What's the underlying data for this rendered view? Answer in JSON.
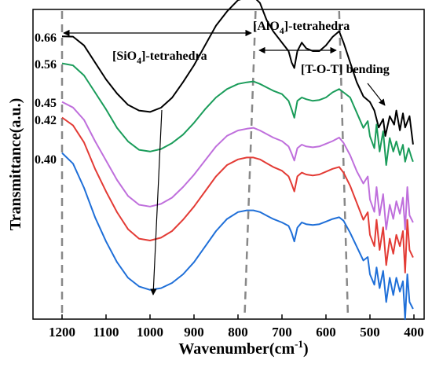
{
  "chart_data": {
    "type": "line",
    "title": "",
    "xlabel": "Wavenumber(cm",
    "xlabel_sup": "-1",
    "xlabel_tail": ")",
    "ylabel": "Transmittance(a.u.)",
    "xlim": [
      1260,
      390
    ],
    "x_reversed": true,
    "y_ticks_shown": false,
    "grid": false,
    "x_ticks": [
      1200,
      1100,
      1000,
      900,
      800,
      700,
      600,
      500,
      400
    ],
    "x_tick_labels": [
      "1200",
      "1100",
      "1000",
      "900",
      "800",
      "700",
      "600",
      "500",
      "400"
    ],
    "annotations": [
      {
        "id": "si",
        "pre": "[SiO",
        "sub": "4",
        "post": "]-tetrahedra"
      },
      {
        "id": "al",
        "pre": "[AlO",
        "sub": "4",
        "post": "]-tetrahedra"
      },
      {
        "id": "tot",
        "pre": "[T-O-T] bending",
        "sub": "",
        "post": ""
      }
    ],
    "reference_lines": [
      {
        "x_top": 1200,
        "x_bottom": 1200
      },
      {
        "x_top": 760,
        "x_bottom": 785
      },
      {
        "x_top": 570,
        "x_bottom": 550
      }
    ],
    "series": [
      {
        "name": "0.66",
        "color": "#000000",
        "points": [
          [
            1200,
            -0.2
          ],
          [
            1175,
            -0.1
          ],
          [
            1150,
            3
          ],
          [
            1125,
            9
          ],
          [
            1100,
            15
          ],
          [
            1075,
            20
          ],
          [
            1050,
            24
          ],
          [
            1025,
            26
          ],
          [
            1000,
            26.5
          ],
          [
            975,
            25
          ],
          [
            950,
            21.5
          ],
          [
            925,
            16
          ],
          [
            900,
            10
          ],
          [
            875,
            3
          ],
          [
            850,
            -4
          ],
          [
            825,
            -9
          ],
          [
            800,
            -13
          ],
          [
            780,
            -14
          ],
          [
            765,
            -14.3
          ],
          [
            750,
            -12
          ],
          [
            735,
            -6
          ],
          [
            720,
            -2
          ],
          [
            700,
            2
          ],
          [
            685,
            5
          ],
          [
            678,
            9
          ],
          [
            672,
            11
          ],
          [
            665,
            5
          ],
          [
            655,
            2
          ],
          [
            645,
            4
          ],
          [
            630,
            5
          ],
          [
            615,
            5
          ],
          [
            600,
            3
          ],
          [
            585,
            0
          ],
          [
            570,
            -2
          ],
          [
            560,
            2
          ],
          [
            545,
            9
          ],
          [
            530,
            16
          ],
          [
            515,
            21
          ],
          [
            500,
            23
          ],
          [
            490,
            26
          ],
          [
            480,
            32
          ],
          [
            470,
            29
          ],
          [
            465,
            35
          ],
          [
            455,
            28
          ],
          [
            445,
            31
          ],
          [
            440,
            26
          ],
          [
            432,
            33
          ],
          [
            425,
            27
          ],
          [
            420,
            32
          ],
          [
            410,
            28
          ],
          [
            402,
            38
          ]
        ]
      },
      {
        "name": "0.56",
        "color": "#1a9c5a",
        "points": [
          [
            1200,
            -0.2
          ],
          [
            1175,
            1
          ],
          [
            1150,
            7
          ],
          [
            1125,
            17
          ],
          [
            1100,
            27
          ],
          [
            1075,
            38
          ],
          [
            1050,
            46
          ],
          [
            1025,
            51
          ],
          [
            1000,
            52
          ],
          [
            975,
            50.5
          ],
          [
            950,
            47
          ],
          [
            925,
            42
          ],
          [
            900,
            35
          ],
          [
            875,
            27
          ],
          [
            850,
            20
          ],
          [
            825,
            15
          ],
          [
            800,
            12
          ],
          [
            780,
            11
          ],
          [
            765,
            10.5
          ],
          [
            750,
            12
          ],
          [
            735,
            14
          ],
          [
            720,
            16
          ],
          [
            700,
            18
          ],
          [
            685,
            22
          ],
          [
            678,
            27
          ],
          [
            672,
            32
          ],
          [
            665,
            22
          ],
          [
            655,
            20
          ],
          [
            645,
            21
          ],
          [
            630,
            22
          ],
          [
            615,
            21.5
          ],
          [
            600,
            20
          ],
          [
            585,
            17
          ],
          [
            570,
            15
          ],
          [
            560,
            17
          ],
          [
            545,
            20
          ],
          [
            530,
            29
          ],
          [
            515,
            38
          ],
          [
            505,
            34
          ],
          [
            500,
            43
          ],
          [
            490,
            50
          ],
          [
            485,
            36
          ],
          [
            478,
            52
          ],
          [
            470,
            40
          ],
          [
            463,
            60
          ],
          [
            455,
            44
          ],
          [
            447,
            52
          ],
          [
            440,
            46
          ],
          [
            432,
            54
          ],
          [
            425,
            48
          ],
          [
            420,
            58
          ],
          [
            412,
            50
          ],
          [
            405,
            56
          ],
          [
            402,
            58
          ]
        ]
      },
      {
        "name": "0.45",
        "color": "#bf6fdc",
        "points": [
          [
            1200,
            -0.2
          ],
          [
            1175,
            3
          ],
          [
            1150,
            10
          ],
          [
            1125,
            22
          ],
          [
            1100,
            33
          ],
          [
            1075,
            44
          ],
          [
            1050,
            53
          ],
          [
            1025,
            58
          ],
          [
            1000,
            59
          ],
          [
            975,
            57.5
          ],
          [
            950,
            54
          ],
          [
            925,
            48
          ],
          [
            900,
            41
          ],
          [
            875,
            33
          ],
          [
            850,
            25
          ],
          [
            825,
            19
          ],
          [
            800,
            16
          ],
          [
            780,
            15
          ],
          [
            765,
            14.5
          ],
          [
            750,
            16
          ],
          [
            735,
            18
          ],
          [
            720,
            20
          ],
          [
            700,
            22
          ],
          [
            685,
            25
          ],
          [
            678,
            29
          ],
          [
            672,
            33
          ],
          [
            665,
            26
          ],
          [
            655,
            24
          ],
          [
            645,
            25
          ],
          [
            630,
            25.5
          ],
          [
            615,
            25
          ],
          [
            600,
            23.5
          ],
          [
            585,
            22
          ],
          [
            570,
            20
          ],
          [
            560,
            23
          ],
          [
            545,
            30
          ],
          [
            530,
            39
          ],
          [
            515,
            46
          ],
          [
            505,
            42
          ],
          [
            500,
            55
          ],
          [
            490,
            62
          ],
          [
            485,
            48
          ],
          [
            478,
            64
          ],
          [
            470,
            52
          ],
          [
            463,
            72
          ],
          [
            455,
            58
          ],
          [
            447,
            66
          ],
          [
            440,
            56
          ],
          [
            432,
            63
          ],
          [
            425,
            54
          ],
          [
            420,
            72
          ],
          [
            415,
            48
          ],
          [
            410,
            64
          ],
          [
            402,
            68
          ]
        ]
      },
      {
        "name": "0.42",
        "color": "#e33b35",
        "points": [
          [
            1200,
            -0.2
          ],
          [
            1175,
            4
          ],
          [
            1150,
            13
          ],
          [
            1125,
            27
          ],
          [
            1100,
            39
          ],
          [
            1075,
            50
          ],
          [
            1050,
            59
          ],
          [
            1025,
            64
          ],
          [
            1000,
            65
          ],
          [
            975,
            63.5
          ],
          [
            950,
            60
          ],
          [
            925,
            54
          ],
          [
            900,
            47
          ],
          [
            875,
            39
          ],
          [
            850,
            31
          ],
          [
            825,
            25
          ],
          [
            800,
            22
          ],
          [
            780,
            21
          ],
          [
            765,
            21
          ],
          [
            750,
            22
          ],
          [
            735,
            24
          ],
          [
            720,
            26
          ],
          [
            700,
            28
          ],
          [
            685,
            31
          ],
          [
            678,
            35
          ],
          [
            672,
            39
          ],
          [
            665,
            31
          ],
          [
            655,
            29
          ],
          [
            645,
            30
          ],
          [
            630,
            30.5
          ],
          [
            615,
            30
          ],
          [
            600,
            28.5
          ],
          [
            585,
            27
          ],
          [
            570,
            26
          ],
          [
            560,
            29
          ],
          [
            545,
            36
          ],
          [
            530,
            45
          ],
          [
            515,
            54
          ],
          [
            505,
            50
          ],
          [
            500,
            62
          ],
          [
            490,
            68
          ],
          [
            485,
            54
          ],
          [
            478,
            70
          ],
          [
            470,
            58
          ],
          [
            463,
            78
          ],
          [
            455,
            64
          ],
          [
            447,
            72
          ],
          [
            440,
            62
          ],
          [
            432,
            68
          ],
          [
            425,
            60
          ],
          [
            420,
            82
          ],
          [
            415,
            54
          ],
          [
            410,
            70
          ],
          [
            402,
            74
          ]
        ]
      },
      {
        "name": "0.40",
        "color": "#1f6fd8",
        "points": [
          [
            1200,
            -0.2
          ],
          [
            1175,
            6
          ],
          [
            1150,
            20
          ],
          [
            1125,
            37
          ],
          [
            1100,
            51
          ],
          [
            1075,
            63
          ],
          [
            1050,
            72
          ],
          [
            1025,
            77
          ],
          [
            1000,
            79
          ],
          [
            975,
            78
          ],
          [
            950,
            75
          ],
          [
            925,
            70
          ],
          [
            900,
            63
          ],
          [
            875,
            54
          ],
          [
            850,
            45
          ],
          [
            825,
            38
          ],
          [
            800,
            34
          ],
          [
            780,
            33
          ],
          [
            765,
            33
          ],
          [
            750,
            34
          ],
          [
            735,
            36
          ],
          [
            720,
            38
          ],
          [
            700,
            40
          ],
          [
            685,
            42
          ],
          [
            678,
            46
          ],
          [
            672,
            51
          ],
          [
            665,
            43
          ],
          [
            655,
            40
          ],
          [
            645,
            41
          ],
          [
            630,
            41.5
          ],
          [
            615,
            41
          ],
          [
            600,
            39.5
          ],
          [
            585,
            38
          ],
          [
            570,
            37
          ],
          [
            560,
            39
          ],
          [
            545,
            46
          ],
          [
            530,
            54
          ],
          [
            515,
            62
          ],
          [
            505,
            60
          ],
          [
            500,
            70
          ],
          [
            490,
            76
          ],
          [
            485,
            66
          ],
          [
            478,
            78
          ],
          [
            470,
            68
          ],
          [
            463,
            86
          ],
          [
            455,
            72
          ],
          [
            447,
            82
          ],
          [
            440,
            72
          ],
          [
            432,
            80
          ],
          [
            425,
            74
          ],
          [
            420,
            96
          ],
          [
            415,
            70
          ],
          [
            410,
            86
          ],
          [
            402,
            90
          ]
        ]
      }
    ]
  }
}
